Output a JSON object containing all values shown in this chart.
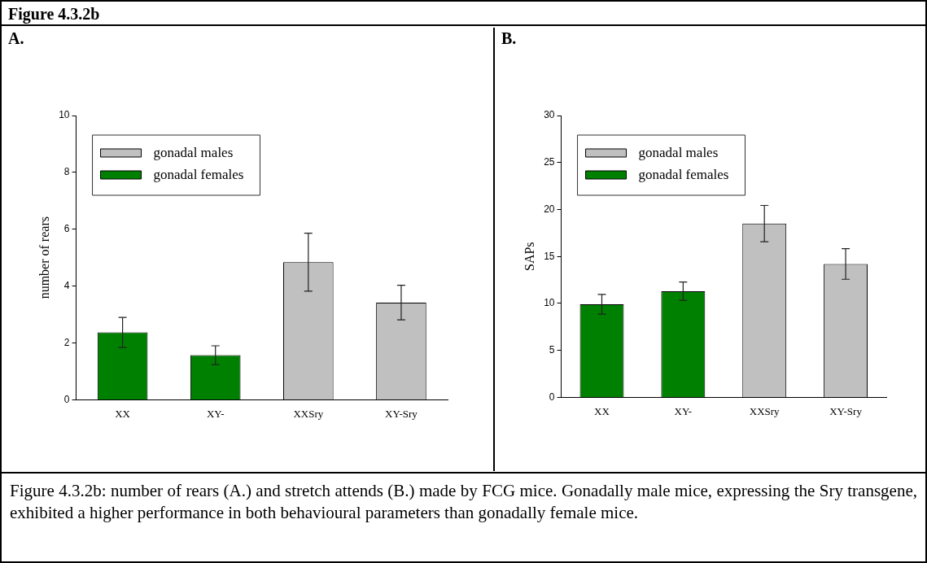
{
  "chart_data": [
    {
      "type": "bar",
      "title": "A.",
      "ylabel": "number of rears",
      "categories": [
        "XX",
        "XY-",
        "XXSry",
        "XY-Sry"
      ],
      "series": [
        {
          "name": "gonadal males",
          "color": "#c0c0c0",
          "values": [
            null,
            null,
            4.84,
            3.42
          ],
          "errors": [
            null,
            null,
            1.02,
            0.61
          ]
        },
        {
          "name": "gonadal females",
          "color": "#008000",
          "values": [
            2.37,
            1.57,
            null,
            null
          ],
          "errors": [
            0.53,
            0.33,
            null,
            null
          ]
        }
      ],
      "ylim": [
        0,
        10
      ],
      "yticks": [
        0,
        2,
        4,
        6,
        8,
        10
      ],
      "grid": false,
      "legend": "top left",
      "annotations": [
        "Figure 4.3.2b"
      ]
    },
    {
      "type": "bar",
      "title": "B.",
      "ylabel": "SAPs",
      "categories": [
        "XX",
        "XY-",
        "XXSry",
        "XY-Sry"
      ],
      "series": [
        {
          "name": "gonadal males",
          "color": "#c0c0c0",
          "values": [
            null,
            null,
            18.5,
            14.2
          ],
          "errors": [
            null,
            null,
            1.93,
            1.63
          ]
        },
        {
          "name": "gonadal females",
          "color": "#008000",
          "values": [
            9.9,
            11.3,
            null,
            null
          ],
          "errors": [
            1.05,
            0.97,
            null,
            null
          ]
        }
      ],
      "ylim": [
        0,
        30
      ],
      "yticks": [
        0,
        5,
        10,
        15,
        20,
        25,
        30
      ],
      "grid": false,
      "legend": "top left",
      "annotations": [
        "Figure 4.3.2b: number of rears (A.) and stretch attends (B.) made by FCG mice. Gonadally male mice, expressing the Sry transgene, exhibited a higher performance in both behavioural parameters than gonadally female mice."
      ]
    }
  ]
}
